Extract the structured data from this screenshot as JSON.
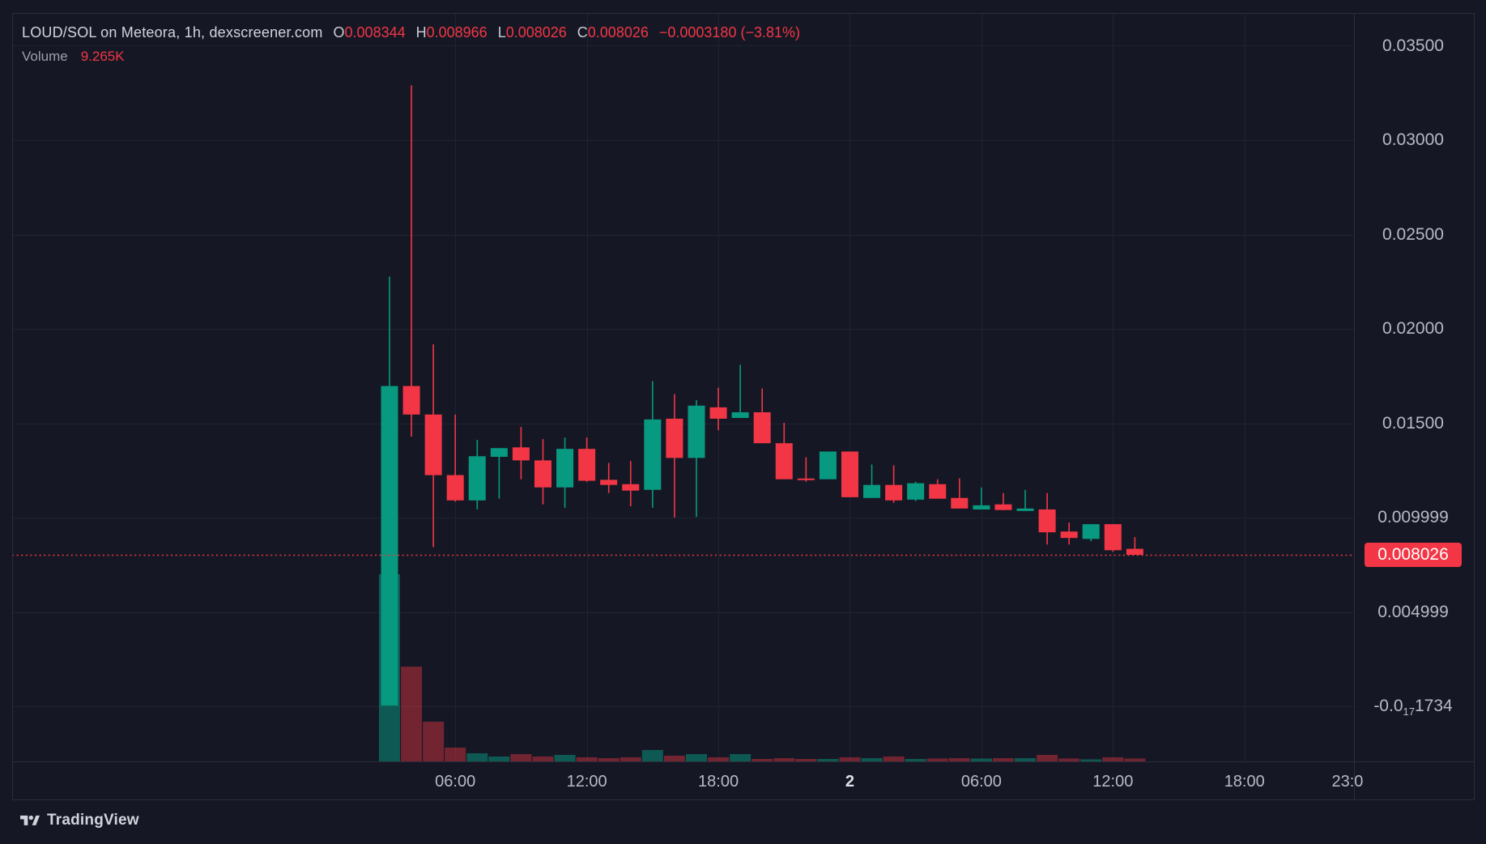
{
  "header": {
    "title": "LOUD/SOL on Meteora, 1h, dexscreener.com",
    "ohlc": [
      {
        "label": "O",
        "value": "0.008344"
      },
      {
        "label": "H",
        "value": "0.008966"
      },
      {
        "label": "L",
        "value": "0.008026"
      },
      {
        "label": "C",
        "value": "0.008026"
      }
    ],
    "change": "−0.0003180 (−3.81%)",
    "volume_label": "Volume",
    "volume_value": "9.265K"
  },
  "price_scale": {
    "labels": [
      {
        "text": "0.03500",
        "price": 0.035
      },
      {
        "text": "0.03000",
        "price": 0.03
      },
      {
        "text": "0.02500",
        "price": 0.025
      },
      {
        "text": "0.02000",
        "price": 0.02
      },
      {
        "text": "0.01500",
        "price": 0.015
      },
      {
        "text": "0.009999",
        "price": 0.009999
      },
      {
        "text": "0.004999",
        "price": 0.004999
      },
      {
        "text": "-0.0{17}1734",
        "pre": "-0.0",
        "sub": "17",
        "post": "1734",
        "price": 0
      }
    ],
    "badge": {
      "text": "0.008026",
      "price": 0.008026
    }
  },
  "time_scale": {
    "labels": [
      {
        "text": "06:00",
        "slot": 3
      },
      {
        "text": "12:00",
        "slot": 9
      },
      {
        "text": "18:00",
        "slot": 15
      },
      {
        "text": "2",
        "slot": 21,
        "emphasis": true
      },
      {
        "text": "06:00",
        "slot": 27
      },
      {
        "text": "12:00",
        "slot": 33
      },
      {
        "text": "18:00",
        "slot": 39
      },
      {
        "text": "23:0",
        "slot": 43.7,
        "no_grid": true
      }
    ]
  },
  "watermark": {
    "brand": "TradingView"
  },
  "colors": {
    "bg": "#151824",
    "up": "#089981",
    "down": "#f23645",
    "vol_up": "rgba(8,153,129,0.5)",
    "vol_down": "rgba(242,54,69,0.42)",
    "grid": "#1f2430",
    "border": "#2a2e39",
    "text_primary": "#d1d4dc",
    "text_axis": "#b7bac4",
    "price_line": "#f23645",
    "badge_bg": "#f23645",
    "badge_text": "#ffffff"
  },
  "chart_data": {
    "type": "candlestick",
    "title": "LOUD/SOL on Meteora, 1h, dexscreener.com",
    "interval": "1h",
    "grid": true,
    "ylim": [
      -0.003,
      0.0368
    ],
    "price_line": {
      "value": 0.008026
    },
    "volume_note": "v is relative bar height, last bar = 9.265K",
    "candles": [
      {
        "t": "03:00",
        "o": 4e-05,
        "h": 0.02277,
        "l": 4e-05,
        "c": 0.01697,
        "v": 231
      },
      {
        "t": "04:00",
        "o": 0.01697,
        "h": 0.0329,
        "l": 0.01429,
        "c": 0.01546,
        "v": 117
      },
      {
        "t": "05:00",
        "o": 0.01546,
        "h": 0.01918,
        "l": 0.00844,
        "c": 0.01225,
        "v": 49
      },
      {
        "t": "06:00",
        "o": 0.01225,
        "h": 0.01546,
        "l": 0.01085,
        "c": 0.01091,
        "v": 17
      },
      {
        "t": "07:00",
        "o": 0.01091,
        "h": 0.01412,
        "l": 0.01043,
        "c": 0.01325,
        "v": 10
      },
      {
        "t": "08:00",
        "o": 0.01322,
        "h": 0.01368,
        "l": 0.011,
        "c": 0.01368,
        "v": 6
      },
      {
        "t": "09:00",
        "o": 0.01372,
        "h": 0.0148,
        "l": 0.01203,
        "c": 0.01303,
        "v": 9
      },
      {
        "t": "10:00",
        "o": 0.01303,
        "h": 0.01416,
        "l": 0.0107,
        "c": 0.0116,
        "v": 6
      },
      {
        "t": "11:00",
        "o": 0.0116,
        "h": 0.01424,
        "l": 0.01052,
        "c": 0.01364,
        "v": 8
      },
      {
        "t": "12:00",
        "o": 0.01364,
        "h": 0.01424,
        "l": 0.0119,
        "c": 0.01195,
        "v": 5
      },
      {
        "t": "13:00",
        "o": 0.012,
        "h": 0.0129,
        "l": 0.0113,
        "c": 0.01173,
        "v": 4
      },
      {
        "t": "14:00",
        "o": 0.01177,
        "h": 0.013,
        "l": 0.0106,
        "c": 0.01143,
        "v": 5
      },
      {
        "t": "15:00",
        "o": 0.01147,
        "h": 0.01723,
        "l": 0.01052,
        "c": 0.0152,
        "v": 14
      },
      {
        "t": "16:00",
        "o": 0.01524,
        "h": 0.01654,
        "l": 0.01,
        "c": 0.01316,
        "v": 7
      },
      {
        "t": "17:00",
        "o": 0.01316,
        "h": 0.01623,
        "l": 0.01004,
        "c": 0.01593,
        "v": 9
      },
      {
        "t": "18:00",
        "o": 0.01584,
        "h": 0.01688,
        "l": 0.01463,
        "c": 0.01524,
        "v": 5
      },
      {
        "t": "19:00",
        "o": 0.01528,
        "h": 0.0181,
        "l": 0.01528,
        "c": 0.01558,
        "v": 9
      },
      {
        "t": "20:00",
        "o": 0.01558,
        "h": 0.01684,
        "l": 0.01394,
        "c": 0.01394,
        "v": 3
      },
      {
        "t": "21:00",
        "o": 0.01394,
        "h": 0.01502,
        "l": 0.01203,
        "c": 0.01203,
        "v": 4
      },
      {
        "t": "22:00",
        "o": 0.01207,
        "h": 0.0132,
        "l": 0.0119,
        "c": 0.01199,
        "v": 3
      },
      {
        "t": "23:00",
        "o": 0.01203,
        "h": 0.0135,
        "l": 0.01203,
        "c": 0.0135,
        "v": 3
      },
      {
        "t": "00:00",
        "day": "2",
        "o": 0.0135,
        "h": 0.0135,
        "l": 0.01108,
        "c": 0.01108,
        "v": 5
      },
      {
        "t": "01:00",
        "o": 0.01104,
        "h": 0.01281,
        "l": 0.01104,
        "c": 0.01173,
        "v": 4
      },
      {
        "t": "02:00",
        "o": 0.01173,
        "h": 0.01277,
        "l": 0.01078,
        "c": 0.01091,
        "v": 6
      },
      {
        "t": "03:00",
        "o": 0.01095,
        "h": 0.0119,
        "l": 0.01087,
        "c": 0.01182,
        "v": 3
      },
      {
        "t": "04:00",
        "o": 0.01177,
        "h": 0.01203,
        "l": 0.011,
        "c": 0.011,
        "v": 3.5
      },
      {
        "t": "05:00",
        "o": 0.01104,
        "h": 0.01208,
        "l": 0.01048,
        "c": 0.01048,
        "v": 4
      },
      {
        "t": "06:00",
        "o": 0.01043,
        "h": 0.0116,
        "l": 0.01043,
        "c": 0.01065,
        "v": 3.5
      },
      {
        "t": "07:00",
        "o": 0.0107,
        "h": 0.0113,
        "l": 0.0104,
        "c": 0.0104,
        "v": 4
      },
      {
        "t": "08:00",
        "o": 0.01035,
        "h": 0.01147,
        "l": 0.01035,
        "c": 0.01048,
        "v": 4
      },
      {
        "t": "09:00",
        "o": 0.01043,
        "h": 0.0113,
        "l": 0.00857,
        "c": 0.00922,
        "v": 8
      },
      {
        "t": "10:00",
        "o": 0.00926,
        "h": 0.00974,
        "l": 0.00857,
        "c": 0.00892,
        "v": 3.5
      },
      {
        "t": "11:00",
        "o": 0.00887,
        "h": 0.00965,
        "l": 0.00874,
        "c": 0.00965,
        "v": 2.5
      },
      {
        "t": "12:00",
        "o": 0.00965,
        "h": 0.00965,
        "l": 0.00818,
        "c": 0.00827,
        "v": 5
      },
      {
        "t": "13:00",
        "o": 0.008344,
        "h": 0.008966,
        "l": 0.008026,
        "c": 0.008026,
        "v": 3.5
      }
    ]
  }
}
